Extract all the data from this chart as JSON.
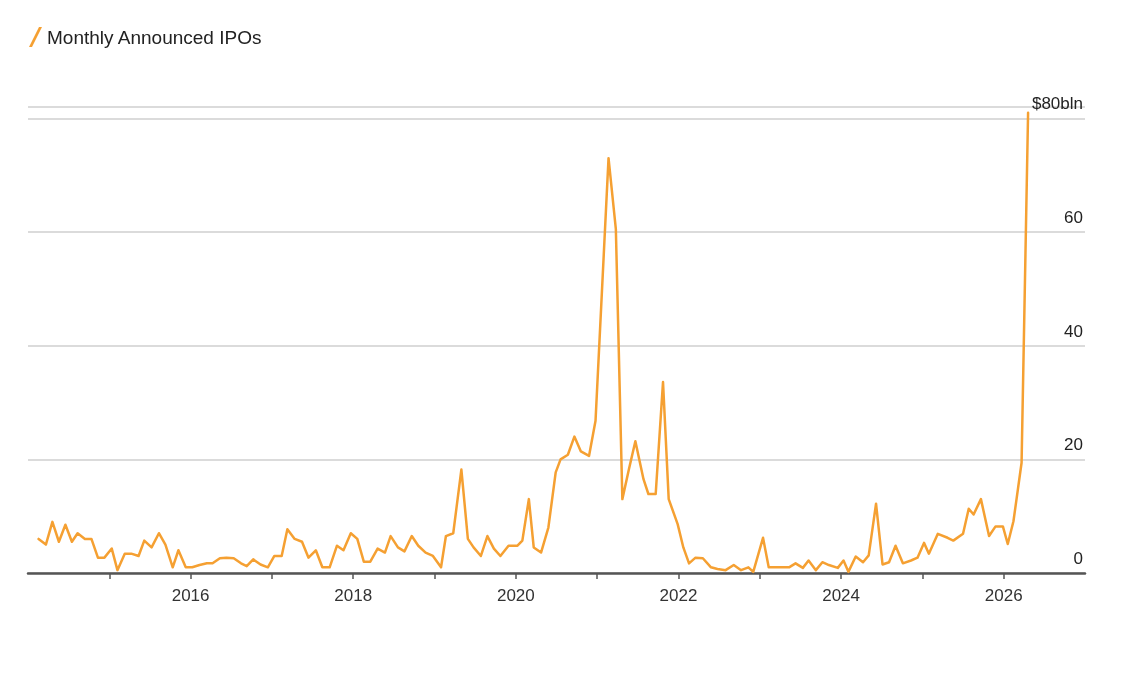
{
  "chart_data": {
    "type": "line",
    "legend": "top left",
    "grid": "y",
    "marker": "none",
    "line_style": "solid",
    "xlim": [
      2014,
      2027
    ],
    "xticks": [
      {
        "value": 2015,
        "label": null
      },
      2016,
      {
        "value": 2017,
        "label": null
      },
      2018,
      {
        "value": 2019,
        "label": null
      },
      2020,
      {
        "value": 2021,
        "label": null
      },
      2022,
      {
        "value": 2023,
        "label": null
      },
      2024,
      {
        "value": 2025,
        "label": null
      },
      2026
    ],
    "ylim": [
      0,
      82
    ],
    "yticks": [
      0,
      20,
      40,
      60,
      {
        "value": 80,
        "label": "$80bln"
      }
    ],
    "series": [
      {
        "name": "Monthly Announced IPOs",
        "color": "#f5a032",
        "x": [
          2014.13,
          2014.22,
          2014.3,
          2014.38,
          2014.46,
          2014.54,
          2014.61,
          2014.7,
          2014.78,
          2014.86,
          2014.94,
          2015.03,
          2015.1,
          2015.19,
          2015.27,
          2015.36,
          2015.43,
          2015.52,
          2015.61,
          2015.69,
          2015.78,
          2015.85,
          2015.94,
          2016.02,
          2016.11,
          2016.2,
          2016.27,
          2016.36,
          2016.44,
          2016.53,
          2016.62,
          2016.69,
          2016.77,
          2016.86,
          2016.95,
          2017.03,
          2017.12,
          2017.19,
          2017.28,
          2017.37,
          2017.45,
          2017.54,
          2017.62,
          2017.71,
          2017.8,
          2017.88,
          2017.97,
          2018.05,
          2018.13,
          2018.21,
          2018.3,
          2018.39,
          2018.46,
          2018.55,
          2018.63,
          2018.72,
          2018.8,
          2018.89,
          2018.98,
          2019.08,
          2019.14,
          2019.23,
          2019.33,
          2019.41,
          2019.48,
          2019.57,
          2019.65,
          2019.73,
          2019.81,
          2019.91,
          2020.02,
          2020.08,
          2020.16,
          2020.22,
          2020.31,
          2020.4,
          2020.49,
          2020.55,
          2020.64,
          2020.72,
          2020.8,
          2020.9,
          2020.98,
          2021.14,
          2021.23,
          2021.31,
          2021.39,
          2021.47,
          2021.57,
          2021.63,
          2021.72,
          2021.81,
          2021.88,
          2021.99,
          2022.06,
          2022.13,
          2022.21,
          2022.3,
          2022.4,
          2022.48,
          2022.58,
          2022.68,
          2022.77,
          2022.86,
          2022.92,
          2023.04,
          2023.11,
          2023.26,
          2023.36,
          2023.44,
          2023.53,
          2023.6,
          2023.69,
          2023.77,
          2023.85,
          2023.96,
          2024.03,
          2024.09,
          2024.18,
          2024.27,
          2024.34,
          2024.43,
          2024.51,
          2024.59,
          2024.67,
          2024.76,
          2024.86,
          2024.94,
          2025.02,
          2025.08,
          2025.19,
          2025.31,
          2025.38,
          2025.5,
          2025.57,
          2025.63,
          2025.72,
          2025.82,
          2025.9,
          2025.99,
          2026.05,
          2026.12,
          2026.22,
          2026.3
        ],
        "values": [
          6,
          5,
          9,
          5.5,
          8.5,
          5.5,
          7,
          6,
          6,
          2.7,
          2.7,
          4.3,
          0.5,
          3.4,
          3.4,
          3,
          5.7,
          4.5,
          7,
          5,
          1,
          4,
          1,
          1,
          1.4,
          1.7,
          1.7,
          2.6,
          2.7,
          2.6,
          1.7,
          1.2,
          2.4,
          1.5,
          1,
          3,
          3,
          7.7,
          6,
          5.5,
          2.7,
          4,
          1,
          1,
          4.8,
          4,
          7,
          6,
          2,
          2,
          4.3,
          3.6,
          6.5,
          4.5,
          3.8,
          6.5,
          4.8,
          3.6,
          3,
          1,
          6.5,
          7,
          18.2,
          6,
          4.5,
          3,
          6.5,
          4.3,
          3,
          4.8,
          4.8,
          5.7,
          13,
          4.5,
          3.6,
          8,
          17.7,
          20,
          20.8,
          24,
          21.4,
          20.6,
          26.8,
          73,
          60.5,
          13,
          18.2,
          23.2,
          16.5,
          13.9,
          13.9,
          33.6,
          13,
          8.6,
          4.5,
          1.7,
          2.7,
          2.6,
          1,
          0.7,
          0.5,
          1.4,
          0.5,
          1,
          0.2,
          6.2,
          1,
          1,
          1,
          1.7,
          0.9,
          2.2,
          0.5,
          1.9,
          1.4,
          0.9,
          2.2,
          0.2,
          2.9,
          1.9,
          3.1,
          12.2,
          1.5,
          1.9,
          4.8,
          1.7,
          2.2,
          2.7,
          5.3,
          3.4,
          6.9,
          6.2,
          5.7,
          6.9,
          11.3,
          10.3,
          13,
          6.5,
          8.2,
          8.2,
          5.1,
          9.1,
          19.4,
          81
        ]
      }
    ]
  }
}
